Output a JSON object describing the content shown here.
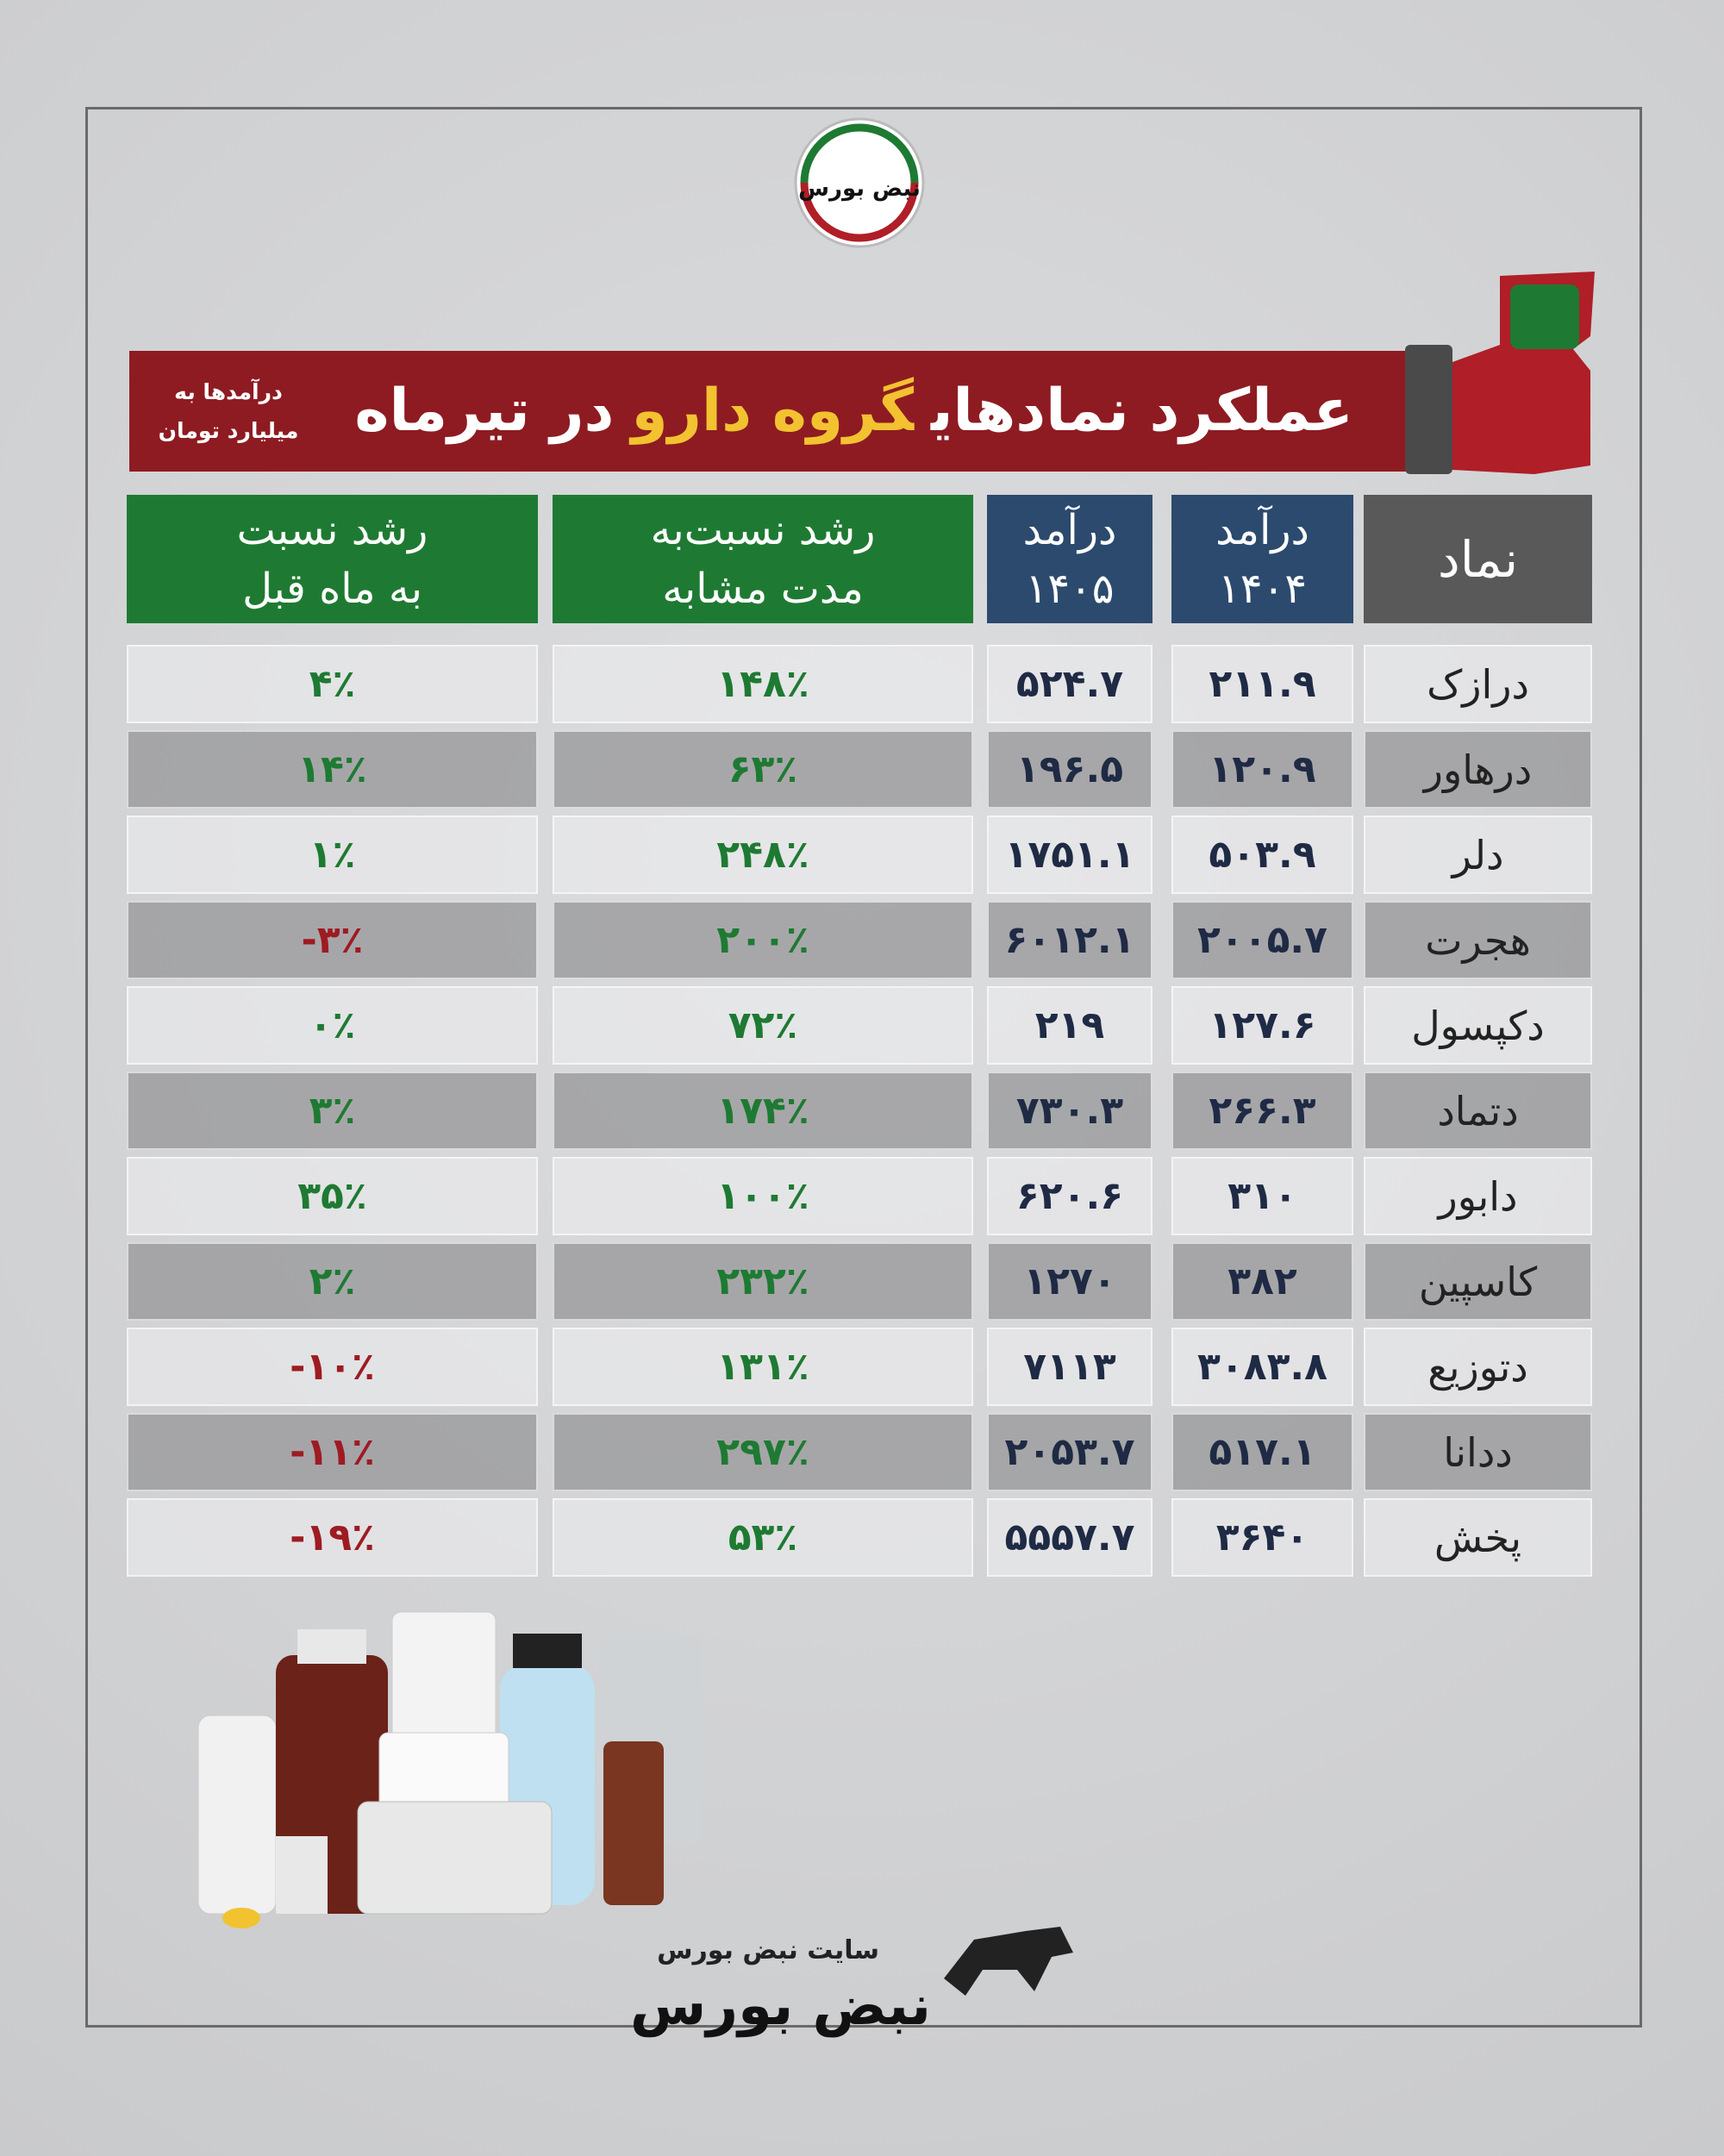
{
  "header": {
    "brand": "نبض بورس",
    "title_parts": [
      "عملکرد نمادهای",
      "گروه دارو",
      "در تیرماه"
    ],
    "note": [
      "درآمدها به",
      "میلیارد تومان"
    ]
  },
  "table": {
    "header": [
      [
        "نماد"
      ],
      [
        "درآمد",
        "۱۴۰۴"
      ],
      [
        "درآمد",
        "۱۴۰۵"
      ],
      [
        "رشد نسبت‌به",
        "مدت مشابه"
      ],
      [
        "رشد نسبت",
        "به ماه قبل"
      ]
    ],
    "rows": [
      [
        "درازک",
        "۲۱۱.۹",
        "۵۲۴.۷",
        "۱۴۸٪",
        "۴٪"
      ],
      [
        "درهاور",
        "۱۲۰.۹",
        "۱۹۶.۵",
        "۶۳٪",
        "۱۴٪"
      ],
      [
        "دلر",
        "۵۰۳.۹",
        "۱۷۵۱.۱",
        "۲۴۸٪",
        "۱٪"
      ],
      [
        "هجرت",
        "۲۰۰۵.۷",
        "۶۰۱۲.۱",
        "۲۰۰٪",
        "-۳٪"
      ],
      [
        "دکپسول",
        "۱۲۷.۶",
        "۲۱۹",
        "۷۲٪",
        "۰٪"
      ],
      [
        "دتماد",
        "۲۶۶.۳",
        "۷۳۰.۳",
        "۱۷۴٪",
        "۳٪"
      ],
      [
        "دابور",
        "۳۱۰",
        "۶۲۰.۶",
        "۱۰۰٪",
        "۳۵٪"
      ],
      [
        "کاسپین",
        "۳۸۲",
        "۱۲۷۰",
        "۲۳۲٪",
        "۲٪"
      ],
      [
        "دتوزیع",
        "۳۰۸۳.۸",
        "۷۱۱۳",
        "۱۳۱٪",
        "-۱۰٪"
      ],
      [
        "ددانا",
        "۵۱۷.۱",
        "۲۰۵۳.۷",
        "۲۹۷٪",
        "-۱۱٪"
      ],
      [
        "پخش",
        "۳۶۴۰",
        "۵۵۵۷.۷",
        "۵۳٪",
        "-۱۹٪"
      ]
    ]
  },
  "footer": {
    "site": "سایت نبض بورس",
    "brand": "نبض بورس"
  }
}
